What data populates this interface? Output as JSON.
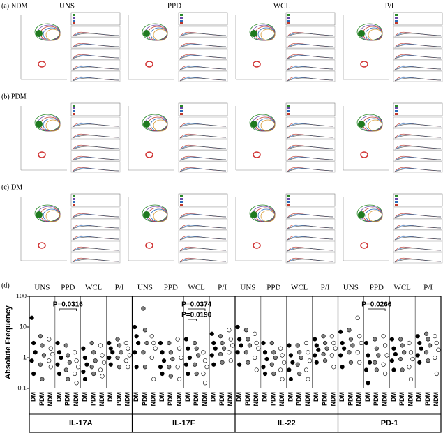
{
  "flow": {
    "columns": [
      "UNS",
      "PPD",
      "WCL",
      "P/I"
    ],
    "rows": [
      {
        "letter": "(a)",
        "label": "NDM"
      },
      {
        "letter": "(b)",
        "label": "PDM"
      },
      {
        "letter": "(c)",
        "label": "DM"
      }
    ]
  },
  "chart_data": {
    "type": "strip",
    "letter": "(d)",
    "ylabel": "Absolute Frequency",
    "log_scale": true,
    "ylim": [
      0.1,
      100
    ],
    "yticks": [
      0.1,
      1,
      10,
      100
    ],
    "stimuli": [
      "UNS",
      "PPD",
      "WCL",
      "P/I"
    ],
    "groups": [
      {
        "name": "DM",
        "color": "#000000"
      },
      {
        "name": "PDM",
        "color": "#808080"
      },
      {
        "name": "NDM",
        "color": "#ffffff"
      }
    ],
    "panels": [
      {
        "title": "IL-17A",
        "pvalues": [
          [],
          [
            "P=0.0316"
          ],
          [],
          []
        ],
        "values": [
          [
            [
              20,
              3,
              1.5,
              0.8,
              0.3
            ],
            [
              5,
              2.5,
              1.2,
              0.6,
              0.2
            ],
            [
              4,
              2,
              1.3,
              0.8,
              0.5
            ]
          ],
          [
            [
              3,
              1.5,
              1,
              0.6,
              0.3
            ],
            [
              2.5,
              1.2,
              0.7,
              0.4,
              0.2
            ],
            [
              1.5,
              0.8,
              0.5,
              0.3,
              0.15
            ]
          ],
          [
            [
              2,
              1,
              0.6,
              0.35,
              0.2
            ],
            [
              3,
              1.5,
              0.8,
              0.5,
              0.3
            ],
            [
              2.5,
              1.2,
              0.7,
              0.4,
              0.25
            ]
          ],
          [
            [
              3,
              2,
              1.5,
              1,
              0.6
            ],
            [
              4,
              2.5,
              1.5,
              1,
              0.5
            ],
            [
              3,
              2,
              1.2,
              0.8,
              0.5
            ]
          ]
        ]
      },
      {
        "title": "IL-17F",
        "pvalues": [
          [],
          [],
          [
            "P=0.0374",
            "P=0.0190"
          ],
          []
        ],
        "values": [
          [
            [
              10,
              5,
              3,
              1.5,
              0.5
            ],
            [
              40,
              8,
              3,
              1.5,
              0.5
            ],
            [
              5,
              3,
              2,
              1,
              0.2
            ]
          ],
          [
            [
              3,
              1.5,
              0.8,
              0.5,
              0.3
            ],
            [
              3,
              1.5,
              0.9,
              0.5,
              0.25
            ],
            [
              4,
              2,
              1,
              0.5,
              0.2
            ]
          ],
          [
            [
              4,
              2,
              1,
              0.6,
              0.3
            ],
            [
              3,
              2,
              1.2,
              0.6,
              0.3
            ],
            [
              1.5,
              0.8,
              0.5,
              0.3,
              0.15
            ]
          ],
          [
            [
              6,
              3,
              2,
              1.2,
              0.6
            ],
            [
              5,
              3,
              2,
              1.3,
              0.7
            ],
            [
              8,
              4,
              2.5,
              1.5,
              0.8
            ]
          ]
        ]
      },
      {
        "title": "IL-22",
        "pvalues": [
          [],
          [],
          [],
          []
        ],
        "values": [
          [
            [
              10,
              4,
              2.5,
              1.5,
              0.6
            ],
            [
              8,
              4,
              2.5,
              1.5,
              0.7
            ],
            [
              6,
              3,
              2,
              1,
              0.4
            ]
          ],
          [
            [
              3,
              1.5,
              0.9,
              0.5,
              0.3
            ],
            [
              3,
              1.5,
              1,
              0.6,
              0.3
            ],
            [
              2,
              1.2,
              0.7,
              0.4,
              0.2
            ]
          ],
          [
            [
              2.5,
              1.2,
              0.7,
              0.4,
              0.2
            ],
            [
              2.5,
              1.5,
              1,
              0.6,
              0.3
            ],
            [
              3,
              1.5,
              0.8,
              0.4,
              0.2
            ]
          ],
          [
            [
              4,
              2.5,
              1.8,
              1.2,
              0.7
            ],
            [
              5,
              3,
              2,
              1.3,
              0.8
            ],
            [
              5,
              3,
              2,
              1.2,
              0.5
            ]
          ]
        ]
      },
      {
        "title": "PD-1",
        "pvalues": [
          [],
          [
            "P=0.0266"
          ],
          [],
          []
        ],
        "values": [
          [
            [
              7,
              3,
              2,
              1.2,
              0.5
            ],
            [
              8,
              4,
              2.5,
              1.5,
              0.7
            ],
            [
              20,
              5,
              3,
              1.5,
              0.7
            ]
          ],
          [
            [
              3,
              1.2,
              0.7,
              0.4,
              0.15
            ],
            [
              4,
              2,
              1.2,
              0.7,
              0.4
            ],
            [
              5,
              2.5,
              1.2,
              0.6,
              0.3
            ]
          ],
          [
            [
              4,
              2,
              1.3,
              0.8,
              0.4
            ],
            [
              4,
              2.5,
              1.5,
              0.9,
              0.4
            ],
            [
              3,
              1.5,
              0.9,
              0.5,
              0.2
            ]
          ],
          [
            [
              5,
              3,
              2,
              1.2,
              0.7
            ],
            [
              6,
              4,
              2.5,
              1.5,
              0.8
            ],
            [
              5,
              3,
              1.8,
              1,
              0.3
            ]
          ]
        ]
      }
    ]
  }
}
